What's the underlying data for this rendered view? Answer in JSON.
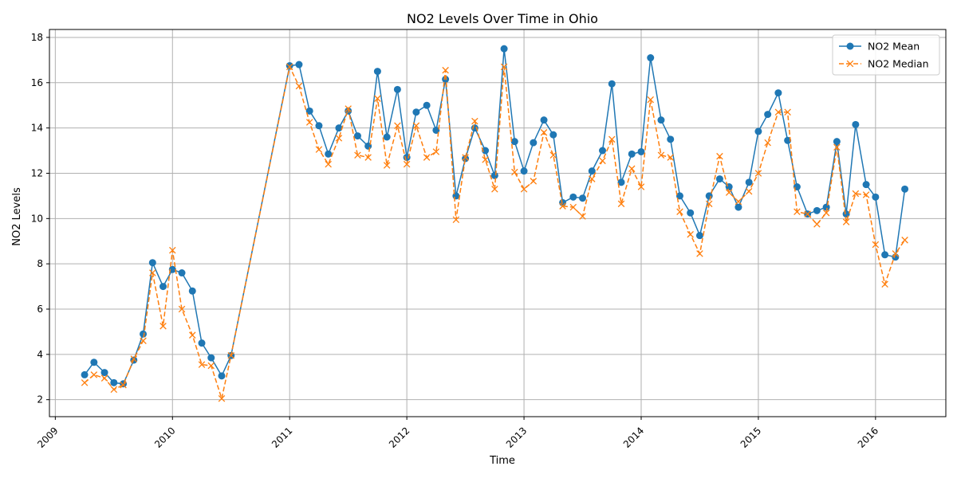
{
  "chart_data": {
    "type": "line",
    "title": "NO2 Levels Over Time in Ohio",
    "xlabel": "Time",
    "ylabel": "NO2 Levels",
    "xlim": [
      2008.95,
      2016.6
    ],
    "ylim": [
      1.25,
      18.35
    ],
    "x_ticks": [
      2009,
      2010,
      2011,
      2012,
      2013,
      2014,
      2015,
      2016
    ],
    "x_tick_labels": [
      "2009",
      "2010",
      "2011",
      "2012",
      "2013",
      "2014",
      "2015",
      "2016"
    ],
    "y_ticks": [
      2,
      4,
      6,
      8,
      10,
      12,
      14,
      16,
      18
    ],
    "y_tick_labels": [
      "2",
      "4",
      "6",
      "8",
      "10",
      "12",
      "14",
      "16",
      "18"
    ],
    "grid": true,
    "legend_position": "top-right",
    "colors": {
      "mean": "#1f77b4",
      "median": "#ff7f0e",
      "grid": "#b0b0b0"
    },
    "series": [
      {
        "name": "NO2 Mean",
        "marker": "circle",
        "line_style": "solid",
        "x": [
          2009.25,
          2009.33,
          2009.42,
          2009.5,
          2009.58,
          2009.67,
          2009.75,
          2009.83,
          2009.92,
          2010.0,
          2010.08,
          2010.17,
          2010.25,
          2010.33,
          2010.42,
          2010.5,
          2011.0,
          2011.08,
          2011.17,
          2011.25,
          2011.33,
          2011.42,
          2011.5,
          2011.58,
          2011.67,
          2011.75,
          2011.83,
          2011.92,
          2012.0,
          2012.08,
          2012.17,
          2012.25,
          2012.33,
          2012.42,
          2012.5,
          2012.58,
          2012.67,
          2012.75,
          2012.83,
          2012.92,
          2013.0,
          2013.08,
          2013.17,
          2013.25,
          2013.33,
          2013.42,
          2013.5,
          2013.58,
          2013.67,
          2013.75,
          2013.83,
          2013.92,
          2014.0,
          2014.08,
          2014.17,
          2014.25,
          2014.33,
          2014.42,
          2014.5,
          2014.58,
          2014.67,
          2014.75,
          2014.83,
          2014.92,
          2015.0,
          2015.08,
          2015.17,
          2015.25,
          2015.33,
          2015.42,
          2015.5,
          2015.58,
          2015.67,
          2015.75,
          2015.83,
          2015.92,
          2016.0,
          2016.08,
          2016.17,
          2016.25
        ],
        "y": [
          3.1,
          3.65,
          3.2,
          2.75,
          2.7,
          3.75,
          4.9,
          8.05,
          7.0,
          7.75,
          7.6,
          6.8,
          4.5,
          3.85,
          3.05,
          3.95,
          16.75,
          16.8,
          14.75,
          14.1,
          12.85,
          14.0,
          14.75,
          13.65,
          13.2,
          16.5,
          13.6,
          15.7,
          12.7,
          14.7,
          15.0,
          13.9,
          16.15,
          11.0,
          12.65,
          14.0,
          13.0,
          11.9,
          17.5,
          13.4,
          12.1,
          13.35,
          14.35,
          13.7,
          10.7,
          10.95,
          10.9,
          12.1,
          13.0,
          15.95,
          11.6,
          12.85,
          12.95,
          17.1,
          14.35,
          13.5,
          11.0,
          10.25,
          9.25,
          11.0,
          11.75,
          11.4,
          10.5,
          11.6,
          13.85,
          14.6,
          15.55,
          13.45,
          11.4,
          10.2,
          10.35,
          10.5,
          13.4,
          10.2,
          14.15,
          11.5,
          10.95,
          8.4,
          8.3,
          11.3
        ]
      },
      {
        "name": "NO2 Median",
        "marker": "x",
        "line_style": "dashed",
        "x": [
          2009.25,
          2009.33,
          2009.42,
          2009.5,
          2009.58,
          2009.67,
          2009.75,
          2009.83,
          2009.92,
          2010.0,
          2010.08,
          2010.17,
          2010.25,
          2010.33,
          2010.42,
          2010.5,
          2011.0,
          2011.08,
          2011.17,
          2011.25,
          2011.33,
          2011.42,
          2011.5,
          2011.58,
          2011.67,
          2011.75,
          2011.83,
          2011.92,
          2012.0,
          2012.08,
          2012.17,
          2012.25,
          2012.33,
          2012.42,
          2012.5,
          2012.58,
          2012.67,
          2012.75,
          2012.83,
          2012.92,
          2013.0,
          2013.08,
          2013.17,
          2013.25,
          2013.33,
          2013.42,
          2013.5,
          2013.58,
          2013.67,
          2013.75,
          2013.83,
          2013.92,
          2014.0,
          2014.08,
          2014.17,
          2014.25,
          2014.33,
          2014.42,
          2014.5,
          2014.58,
          2014.67,
          2014.75,
          2014.83,
          2014.92,
          2015.0,
          2015.08,
          2015.17,
          2015.25,
          2015.33,
          2015.42,
          2015.5,
          2015.58,
          2015.67,
          2015.75,
          2015.83,
          2015.92,
          2016.0,
          2016.08,
          2016.17,
          2016.25
        ],
        "y": [
          2.75,
          3.1,
          2.95,
          2.45,
          2.65,
          3.8,
          4.6,
          7.6,
          5.25,
          8.6,
          6.0,
          4.85,
          3.55,
          3.5,
          2.05,
          3.95,
          16.7,
          15.85,
          14.25,
          13.05,
          12.4,
          13.55,
          14.85,
          12.8,
          12.7,
          15.3,
          12.35,
          14.1,
          12.4,
          14.1,
          12.7,
          12.95,
          16.55,
          9.95,
          12.7,
          14.3,
          12.6,
          11.3,
          16.7,
          12.05,
          11.3,
          11.65,
          13.8,
          12.8,
          10.55,
          10.5,
          10.1,
          11.75,
          12.55,
          13.5,
          10.65,
          12.2,
          11.4,
          15.25,
          12.8,
          12.7,
          10.3,
          9.3,
          8.45,
          10.65,
          12.75,
          11.15,
          10.75,
          11.2,
          12.0,
          13.35,
          14.7,
          14.7,
          10.3,
          10.2,
          9.75,
          10.25,
          13.15,
          9.85,
          11.1,
          11.05,
          8.85,
          7.1,
          8.45,
          9.05
        ]
      }
    ]
  }
}
